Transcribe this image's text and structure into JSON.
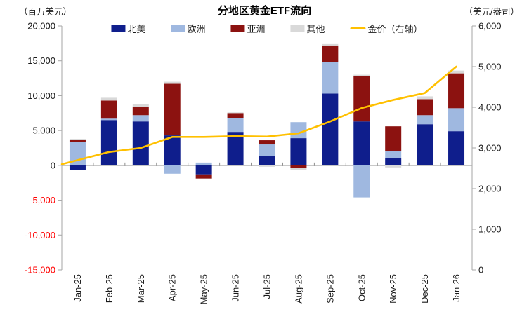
{
  "header": {
    "left_unit": "（百万美元）",
    "title": "分地区黄金ETF流向",
    "right_unit": "（美元/盎司）"
  },
  "colors": {
    "axis_line": "#a6a6a6",
    "zero_line": "#a6a6a6",
    "tick_mark": "#8c8c8c",
    "tick_label": "#1a1a1a",
    "negative_tick_label": "#ff0000",
    "x_label": "#1a1a1a"
  },
  "chart_data": {
    "type": "combo-stacked-bar-line",
    "title": "分地区黄金ETF流向",
    "left_axis_unit": "百万美元",
    "right_axis_unit": "美元/盎司",
    "grid": false,
    "legend_position": "top",
    "categories": [
      "Jan-25",
      "Feb-25",
      "Mar-25",
      "Apr-25",
      "May-25",
      "Jun-25",
      "Jul-25",
      "Aug-25",
      "Sep-25",
      "Oct-25",
      "Nov-25",
      "Dec-25",
      "Jan-26"
    ],
    "series": [
      {
        "name": "北美",
        "type": "bar",
        "color": "#0f1e8c",
        "values": [
          -700,
          6500,
          6300,
          4300,
          -1300,
          4800,
          1300,
          3900,
          10300,
          6300,
          1000,
          5900,
          4900
        ]
      },
      {
        "name": "欧洲",
        "type": "bar",
        "color": "#9fb8e0",
        "values": [
          3400,
          200,
          900,
          -1200,
          400,
          2000,
          1700,
          2300,
          4500,
          -4600,
          1000,
          1300,
          3300
        ]
      },
      {
        "name": "亚洲",
        "type": "bar",
        "color": "#8c1210",
        "values": [
          300,
          2600,
          1200,
          7400,
          -600,
          700,
          600,
          -400,
          2400,
          6500,
          3600,
          2300,
          5000
        ]
      },
      {
        "name": "其他",
        "type": "bar",
        "color": "#d9d9d9",
        "values": [
          100,
          400,
          400,
          300,
          -100,
          100,
          -200,
          -300,
          200,
          200,
          -300,
          400,
          400
        ]
      },
      {
        "name": "金价（右轴）",
        "type": "line",
        "axis": "right",
        "color": "#ffc000",
        "values": [
          2700,
          2900,
          3000,
          3270,
          3270,
          3290,
          3280,
          3360,
          3650,
          3980,
          4180,
          4350,
          5000
        ]
      }
    ],
    "left_axis": {
      "min": -15000,
      "max": 20000,
      "tick_step": 5000,
      "tick_labels": [
        "20,000",
        "15,000",
        "10,000",
        "5,000",
        "0",
        "-5,000",
        "-10,000",
        "-15,000"
      ],
      "tick_values": [
        20000,
        15000,
        10000,
        5000,
        0,
        -5000,
        -10000,
        -15000
      ]
    },
    "right_axis": {
      "min": 0,
      "max": 6000,
      "tick_step": 1000,
      "tick_labels": [
        "6,000",
        "5,000",
        "4,000",
        "3,000",
        "2,000",
        "1,000",
        "0"
      ],
      "tick_values": [
        6000,
        5000,
        4000,
        3000,
        2000,
        1000,
        0
      ]
    }
  }
}
